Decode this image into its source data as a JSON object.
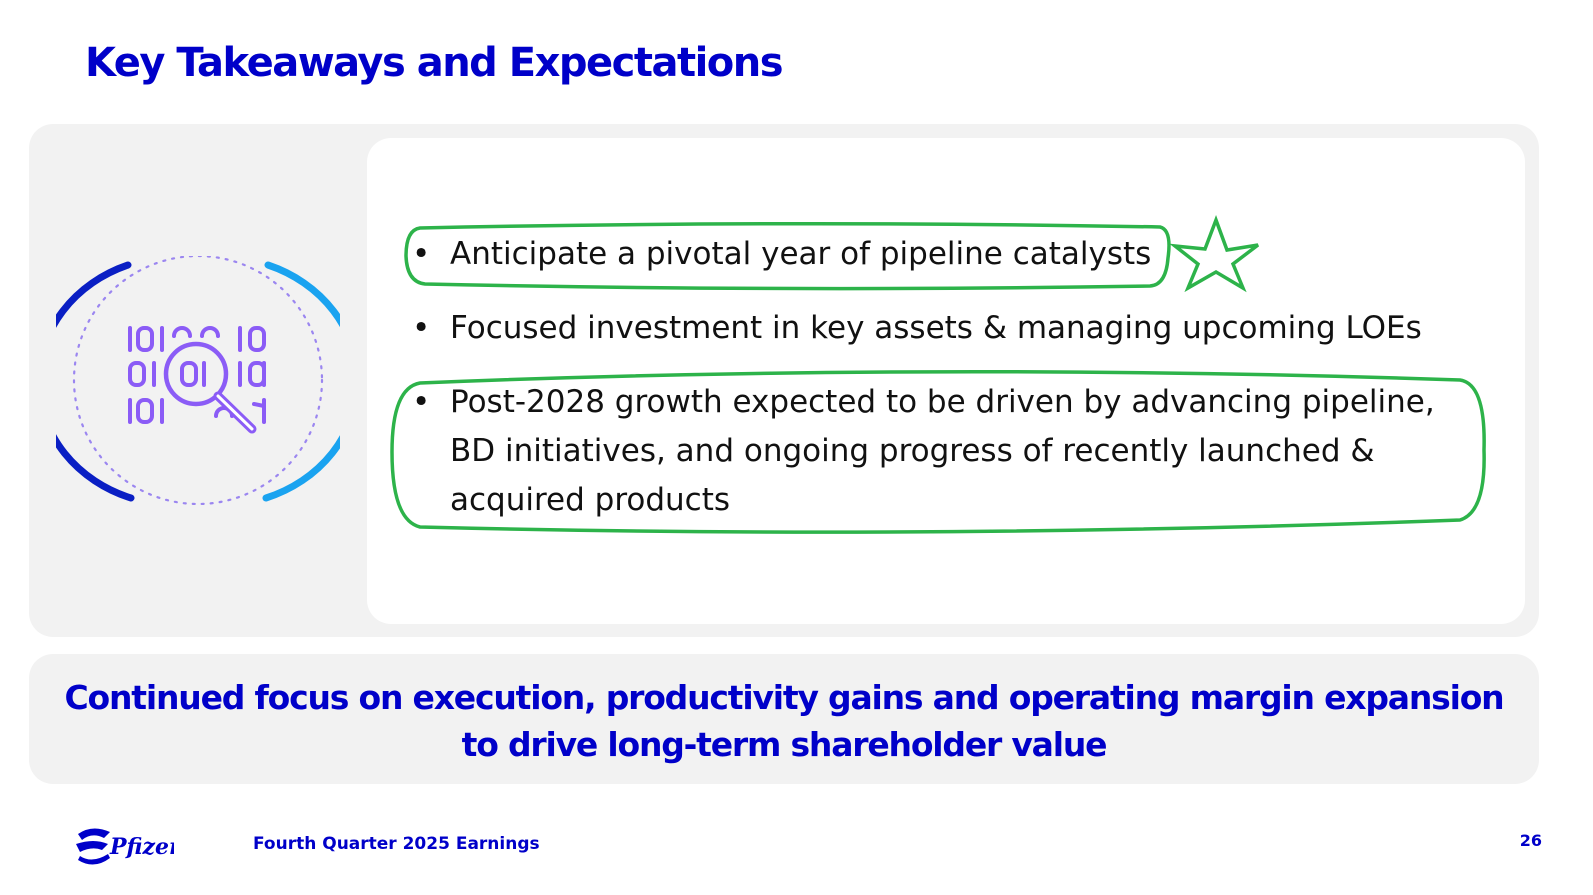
{
  "slide": {
    "title": "Key Takeaways and Expectations",
    "bullets": [
      "Anticipate a pivotal year of pipeline catalysts",
      "Focused investment in key assets & managing upcoming LOEs",
      [
        "Post-2028 growth expected to be driven by advancing pipeline,",
        "BD initiatives, and ongoing progress of recently launched &",
        "acquired products"
      ]
    ],
    "bullet_symbol": "•",
    "banner": {
      "line1": "Continued focus on execution, productivity gains and operating margin expansion",
      "line2": "to drive long-term shareholder value"
    }
  },
  "icon": {
    "name": "data-search-icon",
    "rows": [
      "10 1  10",
      "01 01 01",
      "10 1  1"
    ]
  },
  "footer": {
    "logo_text": "Pfizer",
    "label": "Fourth Quarter 2025 Earnings",
    "page_number": "26"
  },
  "colors": {
    "brand_blue": "#0000c9",
    "arc_light": "#1aa3f0",
    "icon_purple": "#8b5cf6",
    "annotation_green": "#2db34a"
  }
}
